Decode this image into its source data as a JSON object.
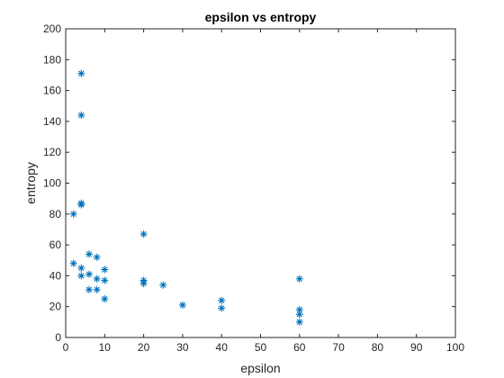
{
  "chart_data": {
    "type": "scatter",
    "title": "epsilon vs entropy",
    "xlabel": "epsilon",
    "ylabel": "entropy",
    "xlim": [
      0,
      100
    ],
    "ylim": [
      0,
      200
    ],
    "xticks": [
      0,
      10,
      20,
      30,
      40,
      50,
      60,
      70,
      80,
      90,
      100
    ],
    "yticks": [
      0,
      20,
      40,
      60,
      80,
      100,
      120,
      140,
      160,
      180,
      200
    ],
    "grid": false,
    "marker": "asterisk",
    "colors": {
      "marker": "#0072bd",
      "axis": "#262626",
      "background": "#ffffff"
    },
    "points": [
      {
        "x": 2,
        "y": 80
      },
      {
        "x": 2,
        "y": 48
      },
      {
        "x": 4,
        "y": 171
      },
      {
        "x": 4,
        "y": 144
      },
      {
        "x": 4,
        "y": 87
      },
      {
        "x": 4,
        "y": 86
      },
      {
        "x": 4,
        "y": 45
      },
      {
        "x": 4,
        "y": 40
      },
      {
        "x": 6,
        "y": 54
      },
      {
        "x": 6,
        "y": 41
      },
      {
        "x": 6,
        "y": 31
      },
      {
        "x": 8,
        "y": 52
      },
      {
        "x": 8,
        "y": 38
      },
      {
        "x": 8,
        "y": 31
      },
      {
        "x": 10,
        "y": 44
      },
      {
        "x": 10,
        "y": 37
      },
      {
        "x": 10,
        "y": 25
      },
      {
        "x": 20,
        "y": 67
      },
      {
        "x": 20,
        "y": 37
      },
      {
        "x": 20,
        "y": 35
      },
      {
        "x": 25,
        "y": 34
      },
      {
        "x": 30,
        "y": 21
      },
      {
        "x": 40,
        "y": 24
      },
      {
        "x": 40,
        "y": 19
      },
      {
        "x": 60,
        "y": 38
      },
      {
        "x": 60,
        "y": 18
      },
      {
        "x": 60,
        "y": 15
      },
      {
        "x": 60,
        "y": 10
      }
    ]
  }
}
